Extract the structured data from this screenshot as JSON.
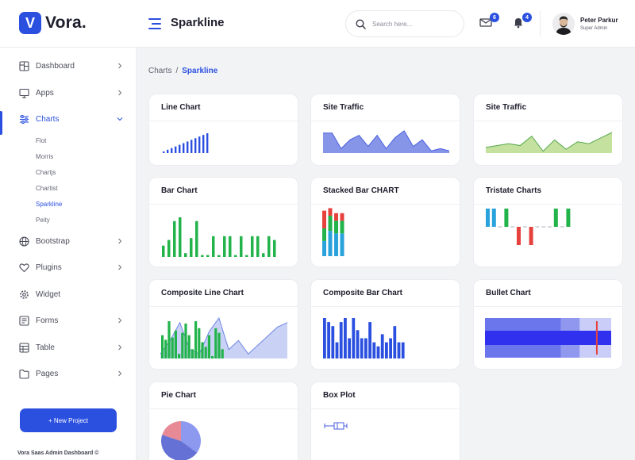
{
  "header": {
    "logo_letter": "V",
    "logo_text": "Vora.",
    "page_title": "Sparkline",
    "search_placeholder": "Search here...",
    "messages_count": "6",
    "notifications_count": "4",
    "user_name": "Peter Parkur",
    "user_role": "Super Admin"
  },
  "sidebar": {
    "items": [
      {
        "label": "Dashboard",
        "icon": "dashboard-icon"
      },
      {
        "label": "Apps",
        "icon": "monitor-icon"
      },
      {
        "label": "Charts",
        "icon": "sliders-icon"
      },
      {
        "label": "Bootstrap",
        "icon": "globe-icon"
      },
      {
        "label": "Plugins",
        "icon": "heart-icon"
      },
      {
        "label": "Widget",
        "icon": "gear-icon"
      },
      {
        "label": "Forms",
        "icon": "form-icon"
      },
      {
        "label": "Table",
        "icon": "table-icon"
      },
      {
        "label": "Pages",
        "icon": "pages-icon"
      }
    ],
    "chart_subitems": [
      "Flot",
      "Morris",
      "Chartjs",
      "Chartist",
      "Sparkline",
      "Peity"
    ],
    "new_project_label": "+ New Project",
    "footer": "Vora Saas Admin Dashboard ©"
  },
  "breadcrumb": {
    "parent": "Charts",
    "current": "Sparkline"
  },
  "cards": {
    "line_chart": "Line Chart",
    "site_traffic_1": "Site Traffic",
    "site_traffic_2": "Site Traffic",
    "bar_chart": "Bar Chart",
    "stacked_bar": "Stacked Bar CHART",
    "tristate": "Tristate Charts",
    "composite_line": "Composite Line Chart",
    "composite_bar": "Composite Bar Chart",
    "bullet": "Bullet Chart",
    "pie": "Pie Chart",
    "box_plot": "Box Plot"
  },
  "colors": {
    "accent": "#2b50e0",
    "line_bar_blue": "#2b50e0",
    "traffic_fill": "#8795e8",
    "traffic_line": "#4a5fe0",
    "traffic2_fill": "#c5e1a0",
    "traffic2_line": "#55a84a",
    "green": "#22b34a",
    "red": "#e5413d",
    "sky": "#2aa3dc",
    "composite_fill": "#c9d2f4",
    "composite_line": "#6f86e6",
    "bullet_range1": "#c9cdf7",
    "bullet_range2": "#8f97ef",
    "bullet_range3": "#6c76ec",
    "bullet_perf": "#3030ef",
    "bullet_target": "#e5413d",
    "pie_1": "#8c99ef",
    "pie_2": "#6571d4",
    "pie_3": "#e88a96",
    "box": "#4a5fe0"
  },
  "chart_data": [
    {
      "type": "bar",
      "name": "line_chart_sparkline",
      "values": [
        1,
        2,
        3,
        4,
        5,
        6,
        7,
        8,
        9,
        10,
        11,
        12
      ]
    },
    {
      "type": "area",
      "name": "site_traffic_1",
      "values": [
        9,
        9,
        2,
        6,
        8,
        3,
        8,
        2,
        7,
        10,
        3,
        6,
        1,
        2,
        1
      ]
    },
    {
      "type": "area",
      "name": "site_traffic_2",
      "values": [
        3,
        4,
        5,
        4,
        9,
        1,
        7,
        2,
        6,
        5,
        8,
        11
      ]
    },
    {
      "type": "bar",
      "name": "bar_chart",
      "values": [
        6,
        9,
        19,
        21,
        2,
        10,
        19,
        1,
        1,
        11,
        1,
        11,
        11,
        1,
        11,
        1,
        11,
        11,
        2,
        11,
        9
      ]
    },
    {
      "type": "bar",
      "name": "stacked_bar",
      "categories": [
        "1",
        "2",
        "3",
        "4"
      ],
      "series": [
        {
          "values": [
            7,
            3,
            3,
            3
          ]
        },
        {
          "values": [
            5,
            6,
            5,
            5
          ]
        },
        {
          "values": [
            6,
            10,
            9,
            9
          ]
        }
      ]
    },
    {
      "type": "bar",
      "name": "tristate",
      "values": [
        1,
        1,
        0,
        1,
        0,
        -1,
        0,
        -1,
        0,
        0,
        0,
        1,
        0,
        1
      ]
    },
    {
      "type": "line",
      "name": "composite_line",
      "values": [
        1,
        4,
        8,
        2,
        1,
        6,
        9,
        2,
        4,
        1,
        3,
        5,
        7,
        8
      ]
    },
    {
      "type": "bar",
      "name": "composite_bars",
      "values": [
        10,
        8,
        16,
        9,
        12,
        2,
        11,
        15,
        10,
        4,
        16,
        13,
        7,
        5,
        10,
        1,
        13,
        11,
        4
      ]
    },
    {
      "type": "bar",
      "name": "composite_bar_chart",
      "values": [
        10,
        9,
        8,
        4,
        9,
        10,
        5,
        10,
        7,
        5,
        5,
        9,
        4,
        3,
        6,
        4,
        5,
        8,
        4,
        4
      ]
    },
    {
      "type": "bar",
      "name": "bullet_chart",
      "ranges": [
        100,
        75,
        60
      ],
      "performance": 100,
      "target": 88
    },
    {
      "type": "pie",
      "name": "pie_chart",
      "values": [
        35,
        45,
        20
      ]
    },
    {
      "type": "box",
      "name": "box_plot",
      "min": 1,
      "q1": 4,
      "median": 5,
      "q3": 7,
      "max": 8
    }
  ]
}
